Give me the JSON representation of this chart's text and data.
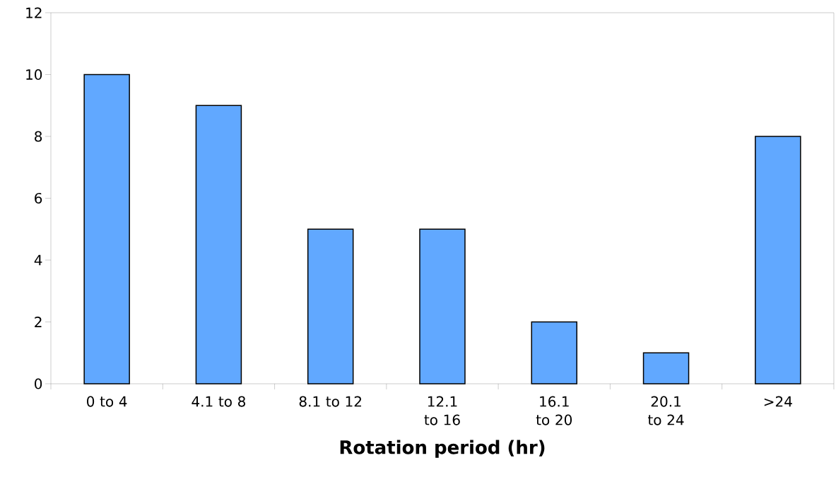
{
  "chart_data": {
    "type": "bar",
    "xlabel": "Rotation period (hr)",
    "categories": [
      "0 to 4",
      "4.1 to 8",
      "8.1 to 12",
      "12.1 to 16",
      "16.1 to 20",
      "20.1 to 24",
      ">24"
    ],
    "values": [
      10,
      9,
      5,
      5,
      2,
      1,
      8
    ],
    "color": "#61a8ff",
    "ylim": [
      0,
      12
    ],
    "yticks": [
      0,
      2,
      4,
      6,
      8,
      10,
      12
    ],
    "grid": false
  }
}
